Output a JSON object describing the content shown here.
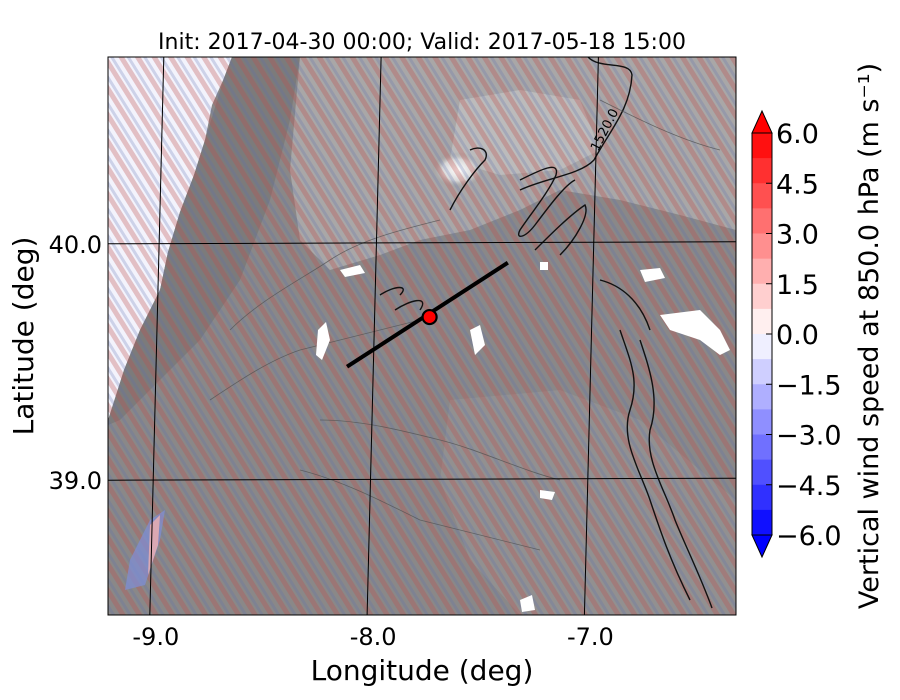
{
  "chart_data": {
    "type": "heatmap",
    "title": "Init: 2017-04-30 00:00; Valid: 2017-05-18 15:00",
    "xlabel": "Longitude (deg)",
    "ylabel": "Latitude (deg)",
    "x_ticks": [
      {
        "value": -9.0,
        "label": "-9.0"
      },
      {
        "value": -8.0,
        "label": "-8.0"
      },
      {
        "value": -7.0,
        "label": "-7.0"
      }
    ],
    "y_ticks": [
      {
        "value": 40.0,
        "label": "40.0"
      },
      {
        "value": 39.0,
        "label": "39.0"
      }
    ],
    "xlim": [
      -9.22,
      -6.33
    ],
    "ylim": [
      38.43,
      40.79
    ],
    "grid": true,
    "colorbar": {
      "label": "Vertical wind speed at 850.0 hPa (m s⁻¹)",
      "vmin": -6.0,
      "vmax": 6.0,
      "extend": "both",
      "cmap": "bwr",
      "ticks": [
        {
          "value": 6.0,
          "label": "6.0"
        },
        {
          "value": 4.5,
          "label": "4.5"
        },
        {
          "value": 3.0,
          "label": "3.0"
        },
        {
          "value": 1.5,
          "label": "1.5"
        },
        {
          "value": 0.0,
          "label": "0.0"
        },
        {
          "value": -1.5,
          "label": "−1.5"
        },
        {
          "value": -3.0,
          "label": "−3.0"
        },
        {
          "value": -4.5,
          "label": "−4.5"
        },
        {
          "value": -6.0,
          "label": "−6.0"
        }
      ],
      "colors": {
        "low": "#0000ff",
        "mid": "#ffffff",
        "high": "#ff0000"
      }
    },
    "contour_label": "1520.0",
    "cross_section_line": {
      "start": [
        -8.12,
        39.48
      ],
      "end": [
        -7.38,
        39.92
      ]
    },
    "marker": {
      "lon": -7.74,
      "lat": 39.69,
      "color": "#ff0000"
    }
  }
}
